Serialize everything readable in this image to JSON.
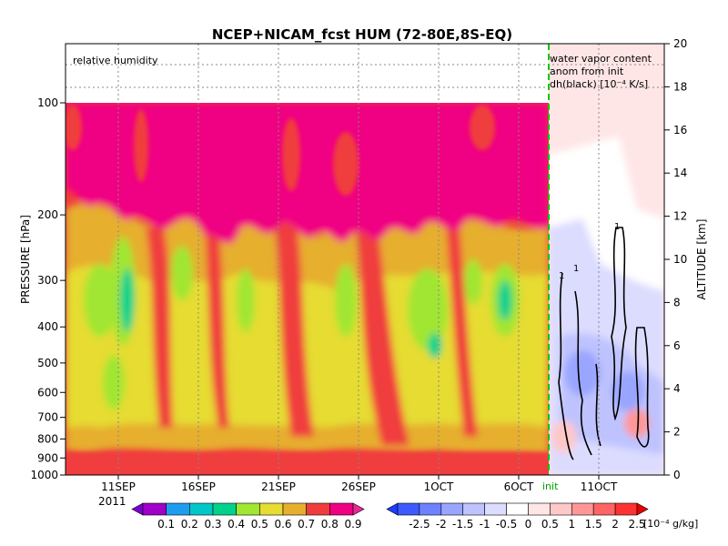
{
  "chart_data": {
    "type": "heatmap",
    "title": "NCEP+NICAM_fcst HUM (72-80E,8S-EQ)",
    "ylabel_left": "PRESSURE [hPa]",
    "ylabel_right": "ALTITUDE [km]",
    "panel_left_label": "relative humidity",
    "panel_right_label": [
      "water vapor content",
      "anom from init",
      "dh(black) [10⁻⁴ K/s]"
    ],
    "init_label": "init",
    "year_label": "2011",
    "x_ticks": [
      "11SEP",
      "16SEP",
      "21SEP",
      "26SEP",
      "1OCT",
      "6OCT",
      "11OCT"
    ],
    "pressure_ticks": [
      100,
      200,
      300,
      400,
      500,
      600,
      700,
      800,
      900,
      1000
    ],
    "altitude_ticks": [
      0,
      2,
      4,
      6,
      8,
      10,
      12,
      14,
      16,
      18,
      20
    ],
    "altitude_range_km": [
      0,
      20
    ],
    "contour_labels": [
      "1",
      "1",
      "1"
    ],
    "rh_colorbar": {
      "levels": [
        "0.1",
        "0.2",
        "0.3",
        "0.4",
        "0.5",
        "0.6",
        "0.7",
        "0.8",
        "0.9"
      ],
      "colors": [
        "#7b00d6",
        "#a000c8",
        "#1e9cf0",
        "#00c8c8",
        "#00d28c",
        "#a0e632",
        "#e6dc32",
        "#e6af2d",
        "#f03c3c",
        "#f00082",
        "#e8289a"
      ]
    },
    "anom_colorbar": {
      "levels": [
        "-2.5",
        "-2",
        "-1.5",
        "-1",
        "-0.5",
        "0",
        "0.5",
        "1",
        "1.5",
        "2",
        "2.5"
      ],
      "unit": "[10⁻⁴ g/kg]",
      "colors": [
        "#1e3cff",
        "#3c5aff",
        "#6e82ff",
        "#9aa5ff",
        "#bec3ff",
        "#dcdcff",
        "#ffffff",
        "#ffe6e6",
        "#ffc8c8",
        "#ff9696",
        "#ff6464",
        "#ff3232",
        "#e60000"
      ]
    },
    "grid": true
  }
}
